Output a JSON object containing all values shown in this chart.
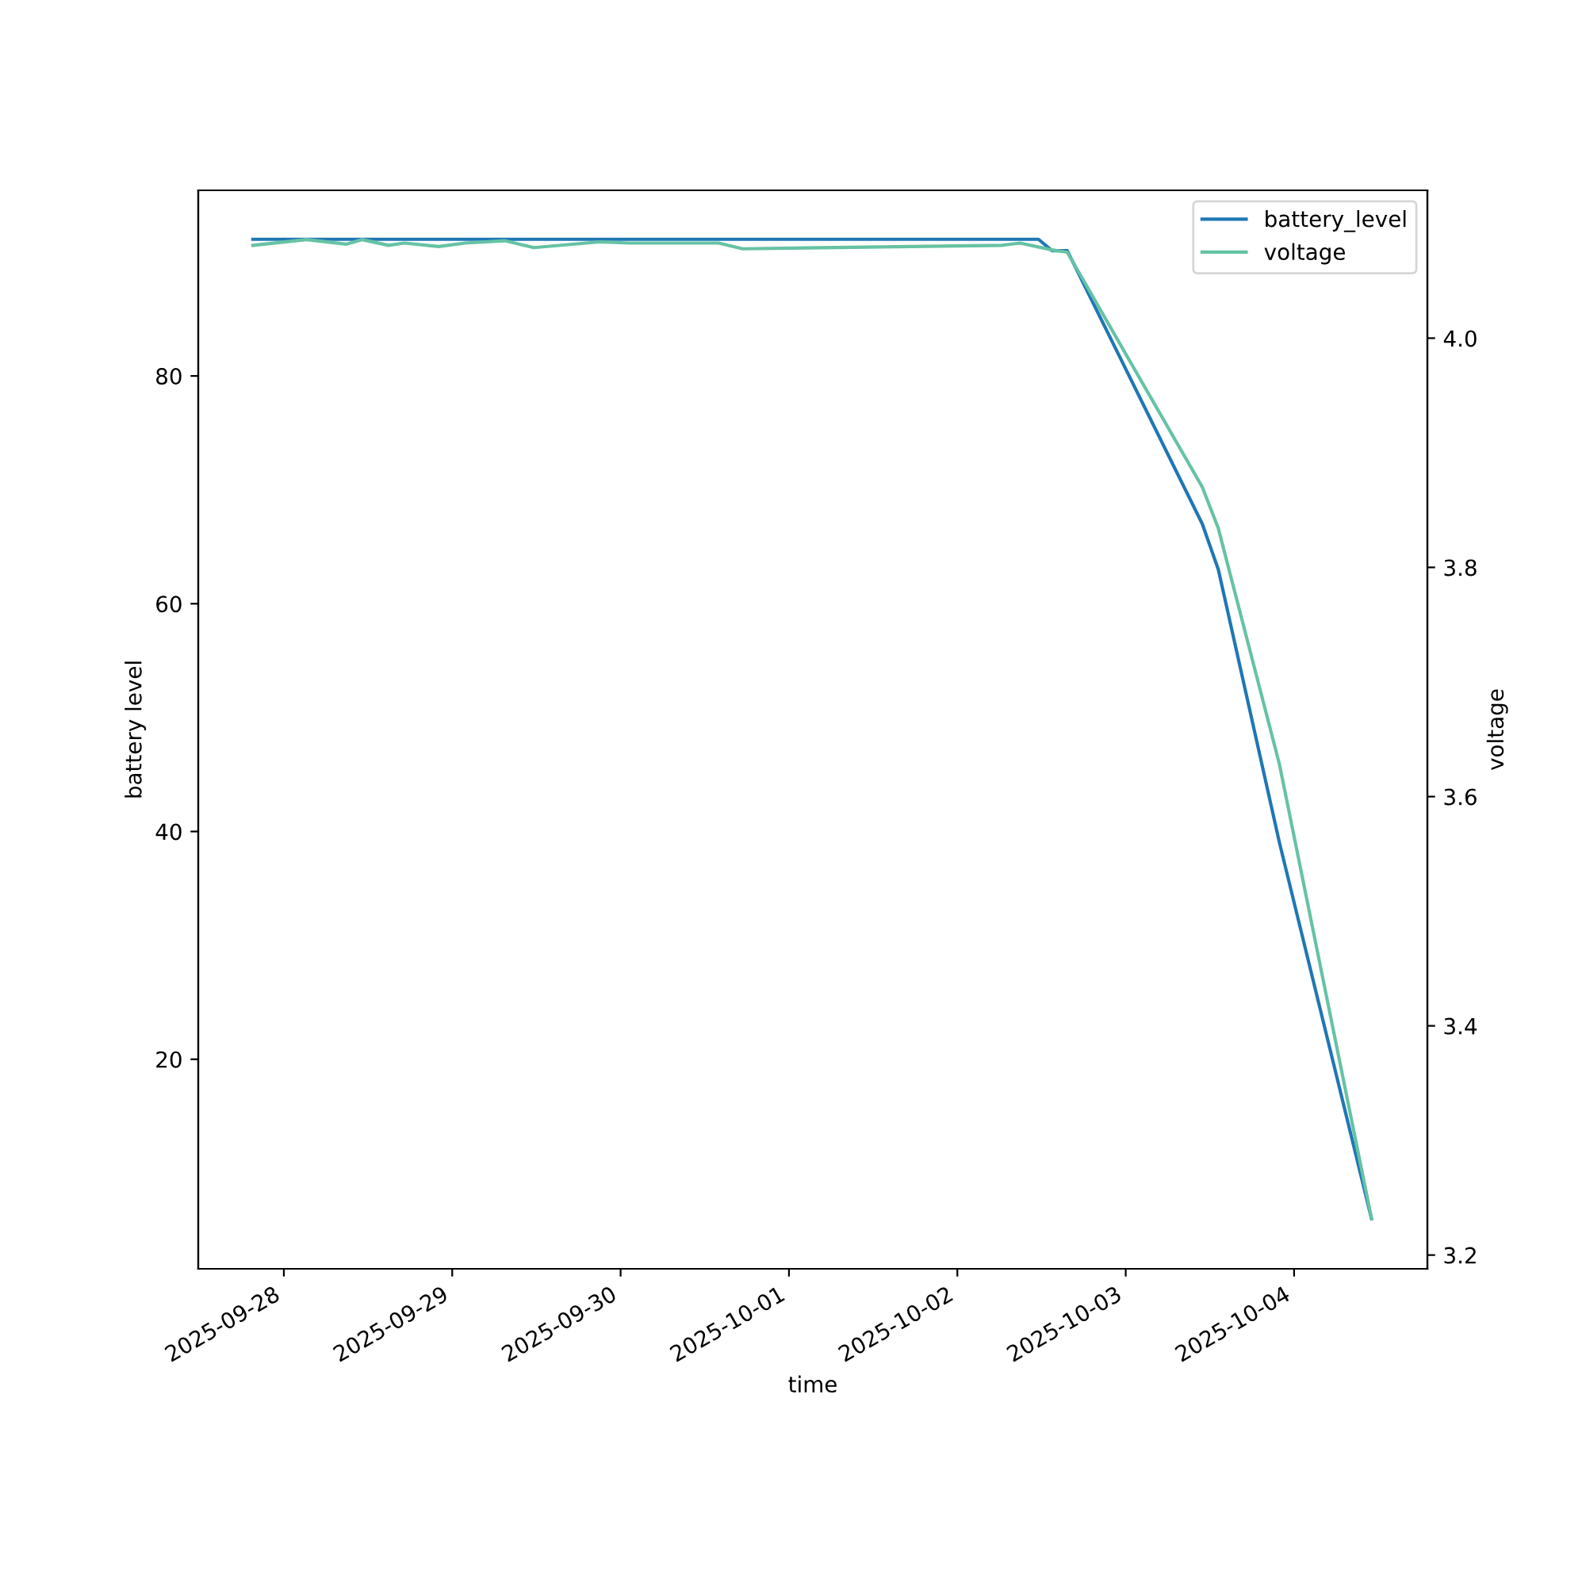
{
  "chart_data": {
    "type": "line",
    "xlabel": "time",
    "ylabel": "battery level",
    "y2label": "voltage",
    "xlim": [
      "2025-09-27T11:48",
      "2025-10-04T19:00"
    ],
    "xticks": [
      "2025-09-28",
      "2025-09-29",
      "2025-09-30",
      "2025-10-01",
      "2025-10-02",
      "2025-10-03",
      "2025-10-04"
    ],
    "ylim": [
      1.6,
      96.3
    ],
    "yticks": [
      20,
      40,
      60,
      80
    ],
    "y2lim": [
      3.188,
      4.129
    ],
    "y2ticks": [
      3.2,
      3.4,
      3.6,
      3.8,
      {
        "value": 4,
        "label": "4.0"
      }
    ],
    "legend": "top right",
    "line_style": "solid",
    "grid": false,
    "series": [
      {
        "name": "battery_level",
        "color": "#1f77b4",
        "x": [
          "2025-09-27T19:35",
          "2025-10-02T11:34",
          "2025-10-02T13:30",
          "2025-10-02T15:40",
          "2025-10-03T10:55",
          "2025-10-03T13:12",
          "2025-10-03T21:55",
          "2025-10-04T11:02"
        ],
        "values": [
          92,
          92,
          91,
          91,
          67,
          63,
          39,
          6
        ]
      },
      {
        "name": "voltage",
        "color": "#66c2a5",
        "axis": "y2",
        "x": [
          "2025-09-27T19:35",
          "2025-09-28T03:14",
          "2025-09-28T08:53",
          "2025-09-28T11:08",
          "2025-09-28T14:55",
          "2025-09-28T17:11",
          "2025-09-28T22:05",
          "2025-09-29T01:50",
          "2025-09-29T07:29",
          "2025-09-29T11:38",
          "2025-09-29T21:02",
          "2025-09-30T01:12",
          "2025-09-30T13:59",
          "2025-09-30T17:23",
          "2025-10-02T06:19",
          "2025-10-02T08:56",
          "2025-10-02T13:30",
          "2025-10-02T15:40",
          "2025-10-03T10:55",
          "2025-10-03T13:12",
          "2025-10-03T21:55",
          "2025-10-04T11:02"
        ],
        "values": [
          4.081,
          4.086,
          4.082,
          4.086,
          4.081,
          4.083,
          4.08,
          4.083,
          4.085,
          4.079,
          4.084,
          4.083,
          4.083,
          4.078,
          4.081,
          4.083,
          4.077,
          4.075,
          3.87,
          3.834,
          3.628,
          3.232
        ]
      }
    ]
  }
}
